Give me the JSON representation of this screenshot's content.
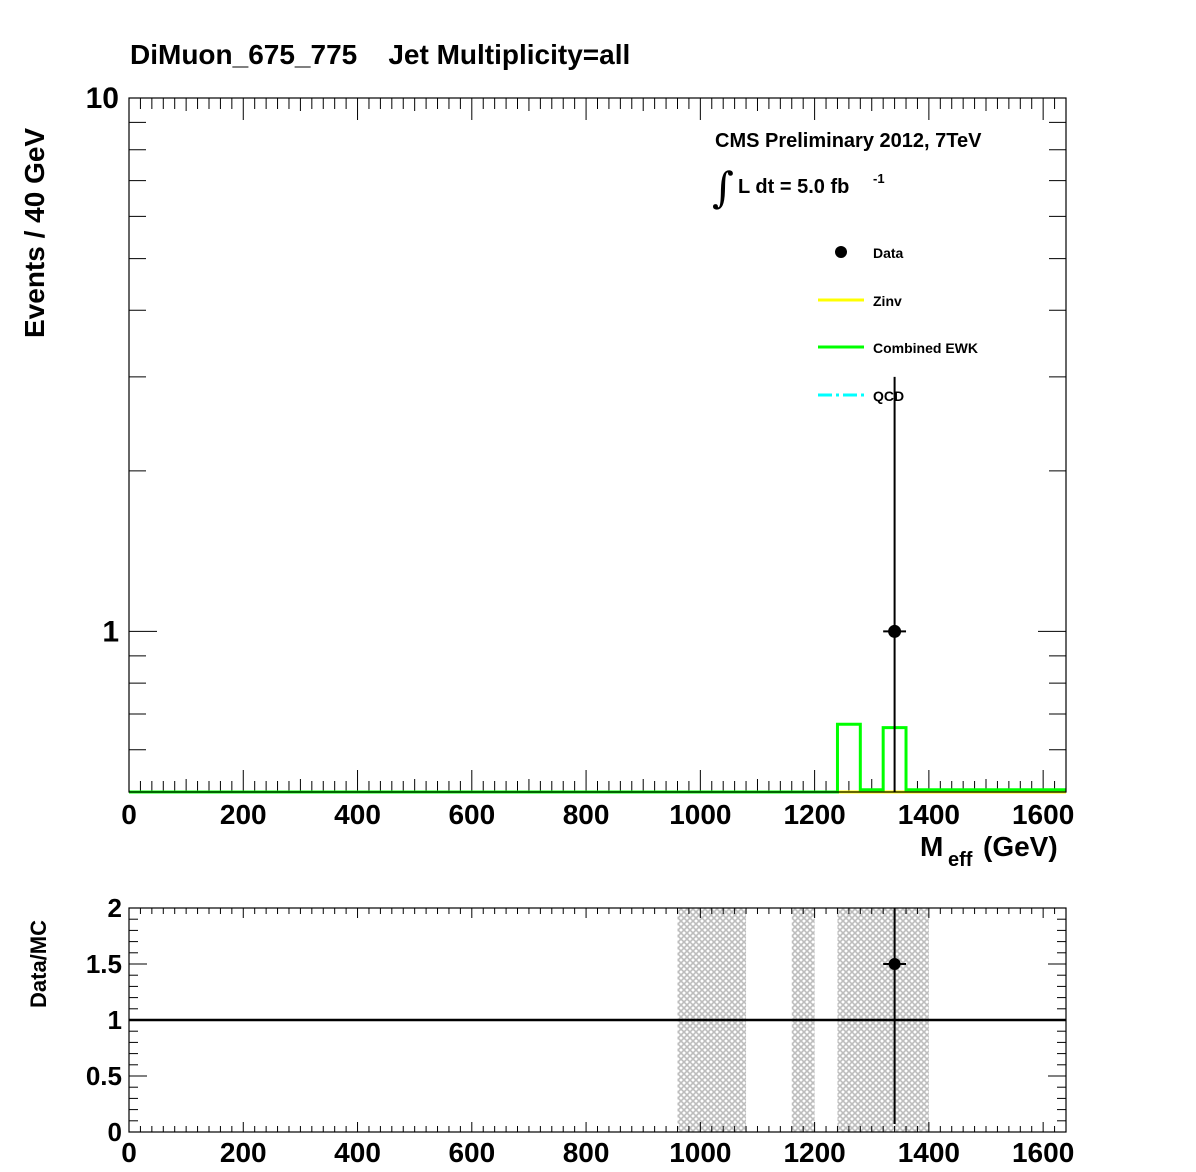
{
  "chart_data": [
    {
      "type": "line",
      "title": "DiMuon_675_775    Jet Multiplicity=all",
      "xlabel": "M",
      "xlabel_sub": "eff",
      "xlabel_unit": "(GeV)",
      "ylabel": "Events / 40 GeV",
      "xlim": [
        0,
        1640
      ],
      "ylim": [
        0.5,
        10
      ],
      "yscale": "log",
      "x_ticks": [
        "0",
        "200",
        "400",
        "600",
        "800",
        "1000",
        "1200",
        "1400",
        "1600"
      ],
      "y_ticks": [
        "1",
        "10"
      ],
      "annotations": {
        "cms_label": "CMS Preliminary 2012, 7TeV",
        "lumi_integral": "∫",
        "lumi_text": "L dt = 5.0 fb",
        "lumi_exp": "-1"
      },
      "legend_position": "top-right",
      "legend": [
        {
          "name": "Data",
          "color": "#000000",
          "style": "marker"
        },
        {
          "name": "Zinv",
          "color": "#ffff00",
          "style": "line"
        },
        {
          "name": "Combined EWK",
          "color": "#00ff00",
          "style": "line"
        },
        {
          "name": "QCD",
          "color": "#00ffff",
          "style": "dash-dot"
        }
      ],
      "series": [
        {
          "name": "Combined EWK",
          "color": "#00ff00",
          "edges": [
            0,
            1240,
            1280,
            1320,
            1360,
            1640
          ],
          "values": [
            0.5,
            0.67,
            0.505,
            0.66,
            0.505
          ]
        },
        {
          "name": "Zinv",
          "color": "#ffff00",
          "edges": [
            0,
            1640
          ],
          "values": [
            0.5
          ]
        }
      ],
      "data_points": [
        {
          "x": 1340,
          "y": 1.0,
          "xerr": 20,
          "yerr_low": 1.0,
          "yerr_high": 2.0
        }
      ]
    },
    {
      "type": "scatter",
      "ylabel": "Data/MC",
      "xlim": [
        0,
        1640
      ],
      "ylim": [
        0,
        2
      ],
      "x_ticks": [
        "0",
        "200",
        "400",
        "600",
        "800",
        "1000",
        "1200",
        "1400",
        "1600"
      ],
      "y_ticks": [
        "0",
        "0.5",
        "1",
        "1.5",
        "2"
      ],
      "reference_line": 1,
      "uncertainty_bands": [
        {
          "x0": 960,
          "x1": 1080
        },
        {
          "x0": 1160,
          "x1": 1200
        },
        {
          "x0": 1240,
          "x1": 1400
        }
      ],
      "data_points": [
        {
          "x": 1340,
          "y": 1.5,
          "xerr": 20,
          "yerr_low": 1.5,
          "yerr_high": 0.5
        }
      ]
    }
  ]
}
